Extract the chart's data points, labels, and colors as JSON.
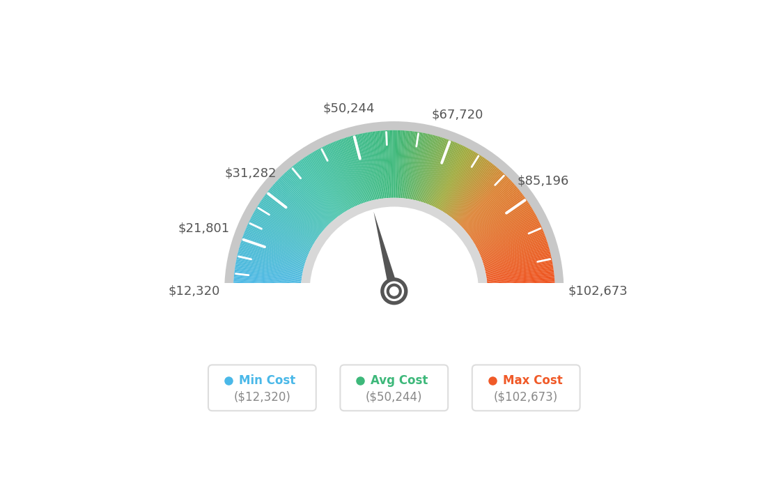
{
  "min_value": 12320,
  "max_value": 102673,
  "avg_value": 50244,
  "labels": [
    "$12,320",
    "$21,801",
    "$31,282",
    "$50,244",
    "$67,720",
    "$85,196",
    "$102,673"
  ],
  "label_values": [
    12320,
    21801,
    31282,
    50244,
    67720,
    85196,
    102673
  ],
  "legend_items": [
    {
      "label": "Min Cost",
      "value": "($12,320)",
      "color": "#4ab8e8"
    },
    {
      "label": "Avg Cost",
      "value": "($50,244)",
      "color": "#3db87a"
    },
    {
      "label": "Max Cost",
      "value": "($102,673)",
      "color": "#f05a28"
    }
  ],
  "needle_value": 50244,
  "background_color": "#ffffff",
  "outer_r": 1.0,
  "inner_r": 0.58,
  "color_stops": [
    [
      0.0,
      [
        78,
        184,
        232
      ]
    ],
    [
      0.3,
      [
        72,
        195,
        170
      ]
    ],
    [
      0.5,
      [
        61,
        184,
        122
      ]
    ],
    [
      0.65,
      [
        160,
        170,
        60
      ]
    ],
    [
      0.75,
      [
        220,
        130,
        50
      ]
    ],
    [
      1.0,
      [
        240,
        80,
        30
      ]
    ]
  ],
  "needle_color": "#555555",
  "outer_border_color": "#cccccc",
  "inner_border_color": "#d0d0d0"
}
